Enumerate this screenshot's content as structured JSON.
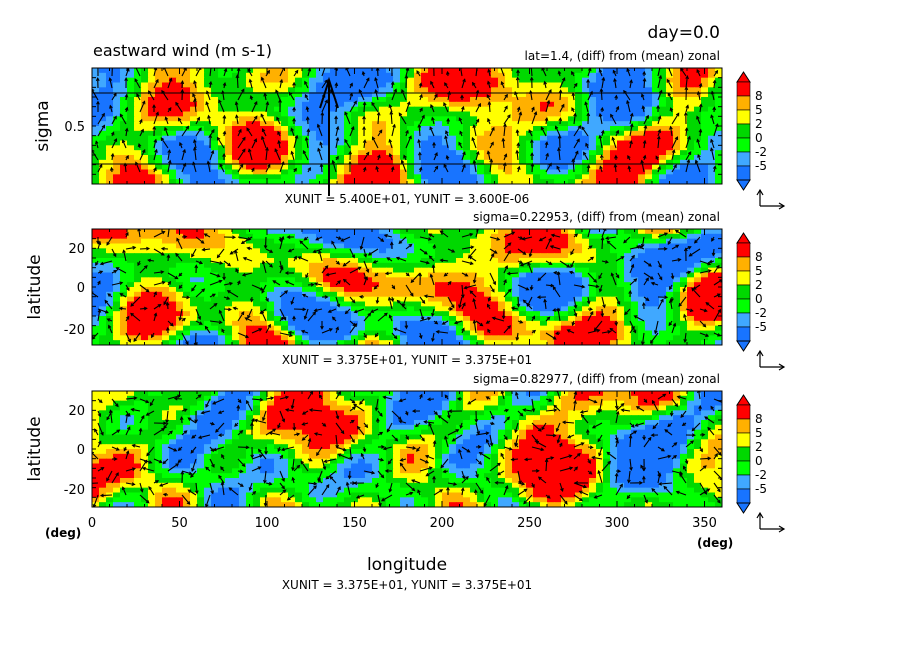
{
  "figure": {
    "day_label": "day=0.0",
    "title": "eastward wind (m s-1)",
    "bottom_xunit": "XUNIT = 3.375E+01, YUNIT = 3.375E+01",
    "xlabel": "longitude",
    "x_units_left": "(deg)",
    "x_units_right": "(deg)"
  },
  "colors": {
    "bands": [
      "#1874ff",
      "#40a8ff",
      "#00ff00",
      "#00d800",
      "#ffff00",
      "#ffb000",
      "#ff0000"
    ],
    "arrow": "#000000"
  },
  "colorbar": {
    "tick_labels": [
      "8",
      "5",
      "2",
      "0",
      "-2",
      "-5"
    ]
  },
  "chart_data": [
    {
      "type": "heatmap",
      "subtitle": "lat=1.4, (diff) from (mean) zonal",
      "ylabel": "sigma",
      "xlim": [
        0,
        360
      ],
      "ylim": [
        0,
        1
      ],
      "yticks": [
        "0.5"
      ],
      "xticks": [],
      "unit_label": "XUNIT = 5.400E+01, YUNIT = 3.600E-06",
      "contour_levels": [
        -5,
        -2,
        0,
        2,
        5,
        8
      ],
      "overlay": "wind vectors"
    },
    {
      "type": "heatmap",
      "subtitle": "sigma=0.22953, (diff) from (mean) zonal",
      "ylabel": "latitude",
      "xlim": [
        0,
        360
      ],
      "ylim": [
        -30,
        30
      ],
      "yticks": [
        "20",
        "0",
        "-20"
      ],
      "xticks": [],
      "unit_label": "XUNIT = 3.375E+01, YUNIT = 3.375E+01",
      "contour_levels": [
        -5,
        -2,
        0,
        2,
        5,
        8
      ],
      "overlay": "wind vectors"
    },
    {
      "type": "heatmap",
      "subtitle": "sigma=0.82977, (diff) from (mean) zonal",
      "ylabel": "latitude",
      "xlim": [
        0,
        360
      ],
      "ylim": [
        -30,
        30
      ],
      "yticks": [
        "20",
        "0",
        "-20"
      ],
      "xticks": [
        "0",
        "50",
        "100",
        "150",
        "200",
        "250",
        "300",
        "350"
      ],
      "unit_label": "",
      "contour_levels": [
        -5,
        -2,
        0,
        2,
        5,
        8
      ],
      "overlay": "wind vectors"
    }
  ]
}
